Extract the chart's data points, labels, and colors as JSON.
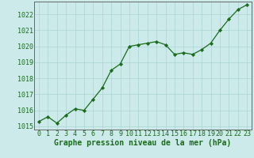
{
  "x": [
    0,
    1,
    2,
    3,
    4,
    5,
    6,
    7,
    8,
    9,
    10,
    11,
    12,
    13,
    14,
    15,
    16,
    17,
    18,
    19,
    20,
    21,
    22,
    23
  ],
  "y": [
    1015.3,
    1015.6,
    1015.2,
    1015.7,
    1016.1,
    1016.0,
    1016.7,
    1017.4,
    1018.5,
    1018.9,
    1020.0,
    1020.1,
    1020.2,
    1020.3,
    1020.1,
    1019.5,
    1019.6,
    1019.5,
    1019.8,
    1020.2,
    1021.0,
    1021.7,
    1022.3,
    1022.6
  ],
  "ylim": [
    1014.8,
    1022.8
  ],
  "yticks": [
    1015,
    1016,
    1017,
    1018,
    1019,
    1020,
    1021,
    1022
  ],
  "xticks": [
    0,
    1,
    2,
    3,
    4,
    5,
    6,
    7,
    8,
    9,
    10,
    11,
    12,
    13,
    14,
    15,
    16,
    17,
    18,
    19,
    20,
    21,
    22,
    23
  ],
  "line_color": "#1a6b1a",
  "marker_color": "#1a6b1a",
  "bg_plot": "#cceaea",
  "bg_fig": "#cceaea",
  "grid_color": "#aad4d4",
  "xlabel": "Graphe pression niveau de la mer (hPa)",
  "xlabel_color": "#1a6b1a",
  "tick_color": "#1a6b1a",
  "axis_color": "#666666",
  "title_fontsize": 7.0,
  "tick_fontsize": 6.0
}
